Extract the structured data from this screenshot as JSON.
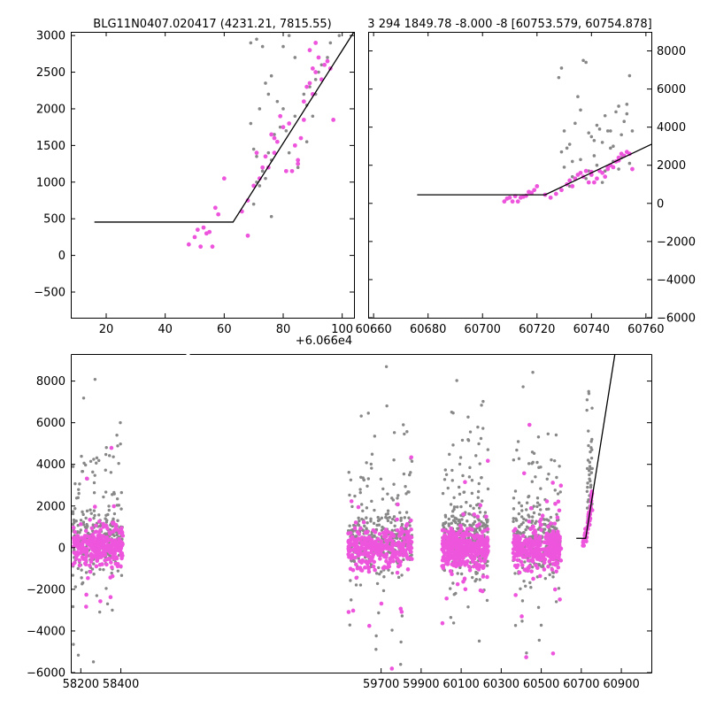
{
  "chart_data": [
    {
      "id": "top_left",
      "type": "scatter",
      "title": "BLG11N0407.020417 (4231.21, 7815.55)",
      "xlim": [
        8,
        104
      ],
      "ylim": [
        -850,
        3050
      ],
      "xticks": [
        20,
        40,
        60,
        80,
        100
      ],
      "xtick_labels": [
        "20",
        "40",
        "60",
        "80",
        "100"
      ],
      "yticks": [
        -500,
        0,
        500,
        1000,
        1500,
        2000,
        2500,
        3000
      ],
      "ytick_labels": [
        "−500",
        "0",
        "500",
        "1000",
        "1500",
        "2000",
        "2500",
        "3000"
      ],
      "offset_text": "+6.066e4",
      "colors": {
        "magenta": "#ee55dd",
        "gray": "#888888",
        "model": "#000000"
      },
      "gray_points": [
        [
          69,
          1800
        ],
        [
          70,
          1450
        ],
        [
          71,
          1350
        ],
        [
          71,
          1000
        ],
        [
          72,
          950
        ],
        [
          73,
          1150
        ],
        [
          74,
          1050
        ],
        [
          75,
          1400
        ],
        [
          76,
          1300
        ],
        [
          77,
          1650
        ],
        [
          78,
          1550
        ],
        [
          79,
          1750
        ],
        [
          80,
          2000
        ],
        [
          81,
          1700
        ],
        [
          82,
          1400
        ],
        [
          83,
          1150
        ],
        [
          84,
          1900
        ],
        [
          86,
          1600
        ],
        [
          87,
          2200
        ],
        [
          88,
          2050
        ],
        [
          89,
          2300
        ],
        [
          90,
          1900
        ],
        [
          91,
          2400
        ],
        [
          92,
          2500
        ],
        [
          93,
          2600
        ],
        [
          95,
          2700
        ],
        [
          96,
          2900
        ],
        [
          69,
          2900
        ],
        [
          71,
          2950
        ],
        [
          73,
          2850
        ],
        [
          74,
          2350
        ],
        [
          75,
          2200
        ],
        [
          76,
          2450
        ],
        [
          78,
          2100
        ],
        [
          80,
          2850
        ],
        [
          82,
          3000
        ],
        [
          84,
          2700
        ],
        [
          97,
          1850
        ],
        [
          99,
          3000
        ],
        [
          76,
          530
        ],
        [
          70,
          700
        ],
        [
          72,
          2000
        ],
        [
          85,
          1200
        ],
        [
          88,
          1550
        ],
        [
          91,
          2200
        ]
      ],
      "magenta_points": [
        [
          48,
          150
        ],
        [
          50,
          250
        ],
        [
          51,
          350
        ],
        [
          52,
          120
        ],
        [
          53,
          380
        ],
        [
          54,
          300
        ],
        [
          55,
          320
        ],
        [
          56,
          120
        ],
        [
          57,
          650
        ],
        [
          58,
          560
        ],
        [
          60,
          1050
        ],
        [
          66,
          600
        ],
        [
          68,
          750
        ],
        [
          68,
          270
        ],
        [
          70,
          950
        ],
        [
          71,
          1400
        ],
        [
          72,
          1050
        ],
        [
          73,
          1200
        ],
        [
          74,
          1350
        ],
        [
          75,
          1200
        ],
        [
          76,
          1650
        ],
        [
          77,
          1600
        ],
        [
          78,
          1550
        ],
        [
          79,
          1900
        ],
        [
          80,
          1750
        ],
        [
          81,
          1150
        ],
        [
          82,
          1800
        ],
        [
          83,
          1150
        ],
        [
          84,
          1500
        ],
        [
          85,
          1300
        ],
        [
          86,
          1600
        ],
        [
          87,
          1850
        ],
        [
          87,
          2100
        ],
        [
          88,
          2300
        ],
        [
          89,
          2350
        ],
        [
          90,
          2550
        ],
        [
          90,
          2200
        ],
        [
          91,
          2500
        ],
        [
          92,
          2700
        ],
        [
          93,
          2400
        ],
        [
          94,
          2600
        ],
        [
          95,
          2650
        ],
        [
          96,
          2550
        ],
        [
          97,
          1850
        ],
        [
          77,
          1400
        ],
        [
          85,
          1250
        ],
        [
          89,
          2800
        ],
        [
          91,
          2900
        ]
      ],
      "model_line": [
        [
          16,
          455
        ],
        [
          63,
          455
        ],
        [
          104,
          3050
        ]
      ]
    },
    {
      "id": "top_right",
      "type": "scatter",
      "title": "3 294 1849.78 -8.000 -8 [60753.579, 60754.878]",
      "xlim": [
        60658,
        60762
      ],
      "ylim": [
        -6000,
        9000
      ],
      "xticks": [
        60660,
        60680,
        60700,
        60720,
        60740,
        60760
      ],
      "xtick_labels": [
        "60660",
        "60680",
        "60700",
        "60720",
        "60740",
        "60760"
      ],
      "yticks": [
        -6000,
        -4000,
        -2000,
        0,
        2000,
        4000,
        6000,
        8000
      ],
      "ytick_labels": [
        "−6000",
        "−4000",
        "−2000",
        "0",
        "2000",
        "4000",
        "6000",
        "8000"
      ],
      "colors": {
        "magenta": "#ee55dd",
        "gray": "#888888",
        "model": "#000000"
      },
      "gray_points": [
        [
          60728,
          6600
        ],
        [
          60729,
          7100
        ],
        [
          60730,
          3800
        ],
        [
          60731,
          2900
        ],
        [
          60732,
          3100
        ],
        [
          60733,
          2200
        ],
        [
          60734,
          4200
        ],
        [
          60735,
          5600
        ],
        [
          60736,
          4900
        ],
        [
          60737,
          7500
        ],
        [
          60738,
          7400
        ],
        [
          60739,
          3700
        ],
        [
          60740,
          3500
        ],
        [
          60741,
          2500
        ],
        [
          60742,
          4100
        ],
        [
          60743,
          3900
        ],
        [
          60744,
          3200
        ],
        [
          60745,
          4600
        ],
        [
          60746,
          3800
        ],
        [
          60747,
          3800
        ],
        [
          60748,
          3000
        ],
        [
          60749,
          4800
        ],
        [
          60750,
          5100
        ],
        [
          60751,
          3600
        ],
        [
          60752,
          4300
        ],
        [
          60753,
          5200
        ],
        [
          60754,
          6700
        ],
        [
          60755,
          3800
        ],
        [
          60730,
          1900
        ],
        [
          60733,
          1400
        ],
        [
          60736,
          2300
        ],
        [
          60739,
          1700
        ],
        [
          60742,
          2000
        ],
        [
          60745,
          1700
        ],
        [
          60748,
          2200
        ],
        [
          60751,
          2400
        ],
        [
          60754,
          2100
        ],
        [
          60732,
          900
        ],
        [
          60738,
          1300
        ],
        [
          60744,
          1100
        ],
        [
          60750,
          1800
        ],
        [
          60729,
          2700
        ],
        [
          60741,
          3300
        ],
        [
          60747,
          2900
        ],
        [
          60753,
          4700
        ]
      ],
      "magenta_points": [
        [
          60708,
          100
        ],
        [
          60709,
          250
        ],
        [
          60710,
          300
        ],
        [
          60711,
          100
        ],
        [
          60712,
          380
        ],
        [
          60713,
          100
        ],
        [
          60714,
          300
        ],
        [
          60715,
          350
        ],
        [
          60716,
          400
        ],
        [
          60717,
          600
        ],
        [
          60718,
          550
        ],
        [
          60719,
          700
        ],
        [
          60720,
          900
        ],
        [
          60723,
          450
        ],
        [
          60725,
          300
        ],
        [
          60727,
          500
        ],
        [
          60729,
          700
        ],
        [
          60731,
          1000
        ],
        [
          60732,
          1200
        ],
        [
          60733,
          900
        ],
        [
          60734,
          1300
        ],
        [
          60735,
          1500
        ],
        [
          60736,
          1600
        ],
        [
          60737,
          1400
        ],
        [
          60738,
          1700
        ],
        [
          60739,
          1100
        ],
        [
          60740,
          1500
        ],
        [
          60741,
          1100
        ],
        [
          60742,
          1300
        ],
        [
          60743,
          1700
        ],
        [
          60744,
          1600
        ],
        [
          60745,
          1400
        ],
        [
          60746,
          1800
        ],
        [
          60747,
          2000
        ],
        [
          60748,
          1900
        ],
        [
          60749,
          2200
        ],
        [
          60750,
          2400
        ],
        [
          60751,
          2600
        ],
        [
          60752,
          2500
        ],
        [
          60753,
          2700
        ],
        [
          60754,
          2600
        ],
        [
          60755,
          1800
        ],
        [
          60740,
          1650
        ],
        [
          60746,
          1900
        ],
        [
          60750,
          2250
        ]
      ],
      "model_line": [
        [
          60676,
          450
        ],
        [
          60723,
          450
        ],
        [
          60762,
          3100
        ]
      ]
    },
    {
      "id": "bottom",
      "type": "scatter",
      "xlim": [
        58150,
        61050
      ],
      "ylim": [
        -6000,
        9300
      ],
      "xticks": [
        58200,
        58400,
        59700,
        59900,
        60100,
        60300,
        60500,
        60700,
        60900
      ],
      "xtick_labels": [
        "58200",
        "58400",
        "59700",
        "59900",
        "60100",
        "60300",
        "60500",
        "60700",
        "60900"
      ],
      "yticks": [
        -6000,
        -4000,
        -2000,
        0,
        2000,
        4000,
        6000,
        8000
      ],
      "ytick_labels": [
        "−6000",
        "−4000",
        "−2000",
        "0",
        "2000",
        "4000",
        "6000",
        "8000"
      ],
      "colors": {
        "magenta": "#ee55dd",
        "gray": "#888888",
        "model": "#000000"
      },
      "seasons": [
        [
          58150,
          58420
        ],
        [
          59530,
          59860
        ],
        [
          60000,
          60240
        ],
        [
          60360,
          60600
        ],
        [
          60700,
          60760
        ]
      ],
      "season_centers": [
        58285,
        59695,
        60120,
        60480,
        60728
      ],
      "season_spreads": [
        125,
        160,
        115,
        120,
        30
      ],
      "model_line": [
        [
          60675,
          450
        ],
        [
          60722,
          450
        ],
        [
          60868,
          9300
        ]
      ]
    }
  ]
}
